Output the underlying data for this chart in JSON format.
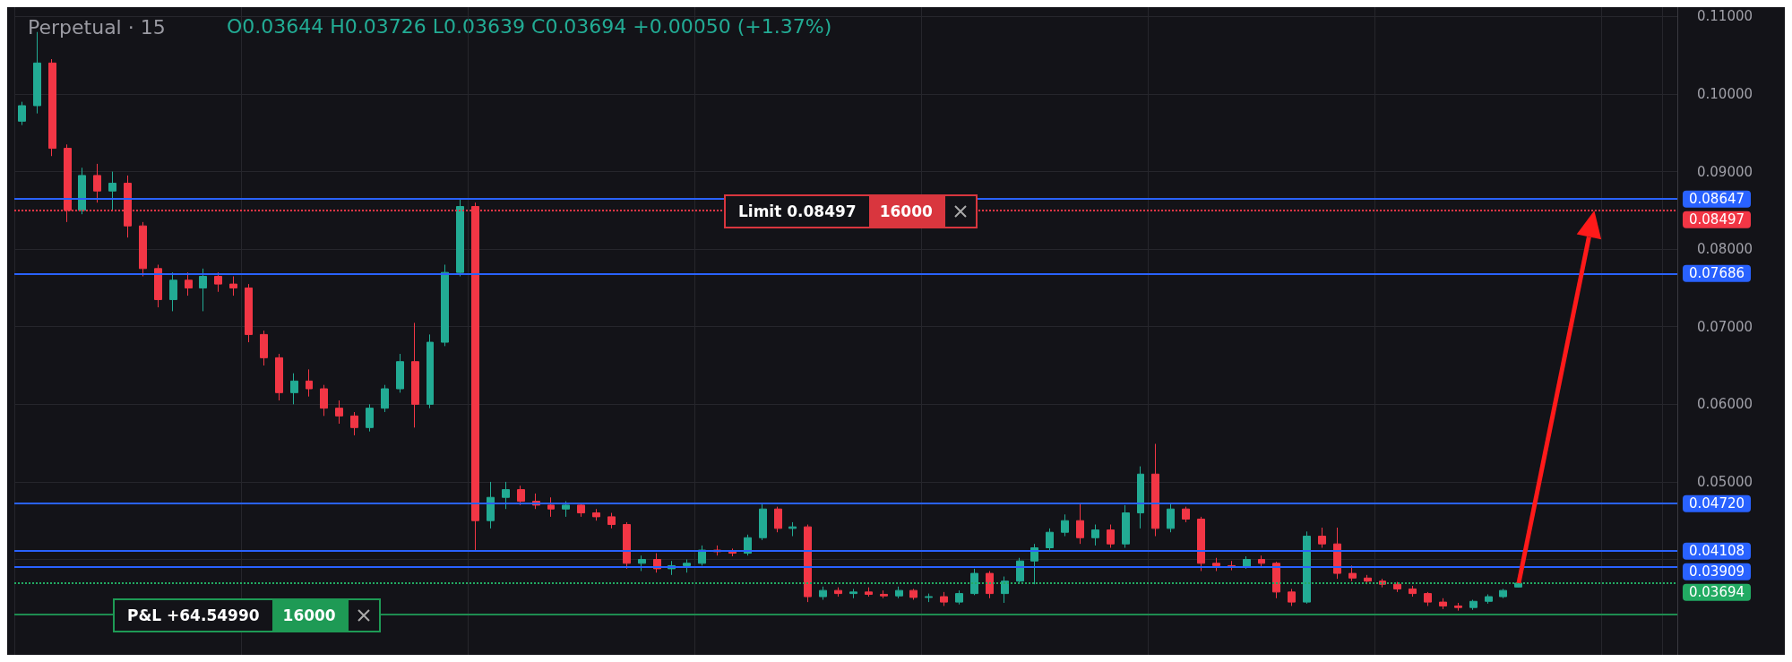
{
  "chart_data": {
    "type": "candlestick",
    "title": "Perpetual · 15",
    "annotations": [
      "O0.03644 H0.03726 L0.03639 C0.03694 +0.00050 (+1.37%)",
      "Limit 0.08497",
      "16000",
      "P&L +64.54990",
      "16000"
    ],
    "categories": [
      null,
      null,
      null,
      null,
      null,
      null,
      null,
      null,
      null,
      null,
      null,
      null,
      null,
      null,
      null,
      null,
      null,
      null,
      null,
      null,
      null,
      null,
      null,
      null,
      null,
      null,
      null,
      null,
      null,
      null,
      null,
      null,
      null,
      null,
      null,
      null,
      null,
      null,
      null,
      null,
      null,
      null,
      null,
      null,
      null,
      null,
      null,
      null,
      null,
      null,
      null,
      null,
      null,
      null,
      null,
      null,
      null,
      null,
      null,
      null,
      null,
      null,
      null,
      null,
      null,
      null,
      null,
      null,
      null,
      null,
      null,
      null,
      null,
      null,
      null,
      null,
      null,
      null,
      null,
      null,
      null,
      null,
      null,
      null,
      null,
      null,
      null,
      null,
      null,
      null,
      null,
      null,
      null,
      null,
      null,
      null,
      null,
      null,
      null,
      null,
      null,
      null,
      null,
      null,
      null,
      null,
      null,
      null,
      null,
      null
    ],
    "ohlc": [
      [
        0.0965,
        0.099,
        0.096,
        0.0985
      ],
      [
        0.0985,
        0.108,
        0.0975,
        0.104
      ],
      [
        0.104,
        0.1045,
        0.092,
        0.093
      ],
      [
        0.093,
        0.0935,
        0.0835,
        0.085
      ],
      [
        0.085,
        0.0905,
        0.0845,
        0.0895
      ],
      [
        0.0895,
        0.091,
        0.086,
        0.0875
      ],
      [
        0.0875,
        0.09,
        0.085,
        0.0885
      ],
      [
        0.0885,
        0.0895,
        0.0815,
        0.083
      ],
      [
        0.083,
        0.0835,
        0.0765,
        0.0775
      ],
      [
        0.0775,
        0.078,
        0.0725,
        0.0735
      ],
      [
        0.0735,
        0.077,
        0.072,
        0.076
      ],
      [
        0.076,
        0.077,
        0.074,
        0.075
      ],
      [
        0.075,
        0.0775,
        0.072,
        0.0765
      ],
      [
        0.0765,
        0.077,
        0.0745,
        0.0755
      ],
      [
        0.0755,
        0.0765,
        0.074,
        0.075
      ],
      [
        0.075,
        0.0755,
        0.068,
        0.069
      ],
      [
        0.069,
        0.0695,
        0.065,
        0.066
      ],
      [
        0.066,
        0.0665,
        0.0605,
        0.0615
      ],
      [
        0.0615,
        0.064,
        0.06,
        0.063
      ],
      [
        0.063,
        0.0645,
        0.061,
        0.062
      ],
      [
        0.062,
        0.0625,
        0.0585,
        0.0595
      ],
      [
        0.0595,
        0.0605,
        0.0575,
        0.0585
      ],
      [
        0.0585,
        0.059,
        0.056,
        0.057
      ],
      [
        0.057,
        0.06,
        0.0565,
        0.0595
      ],
      [
        0.0595,
        0.0625,
        0.059,
        0.062
      ],
      [
        0.062,
        0.0665,
        0.0615,
        0.0655
      ],
      [
        0.0655,
        0.0705,
        0.057,
        0.06
      ],
      [
        0.06,
        0.069,
        0.0595,
        0.068
      ],
      [
        0.068,
        0.078,
        0.0675,
        0.077
      ],
      [
        0.077,
        0.0865,
        0.0765,
        0.0855
      ],
      [
        0.0855,
        0.086,
        0.041,
        0.045
      ],
      [
        0.045,
        0.05,
        0.044,
        0.048
      ],
      [
        0.048,
        0.05,
        0.0465,
        0.049
      ],
      [
        0.049,
        0.0495,
        0.047,
        0.0475
      ],
      [
        0.0475,
        0.0485,
        0.0465,
        0.047
      ],
      [
        0.047,
        0.048,
        0.0455,
        0.0465
      ],
      [
        0.0465,
        0.0475,
        0.0455,
        0.047
      ],
      [
        0.047,
        0.0472,
        0.0455,
        0.046
      ],
      [
        0.046,
        0.0465,
        0.045,
        0.0455
      ],
      [
        0.0455,
        0.046,
        0.044,
        0.0445
      ],
      [
        0.0445,
        0.0448,
        0.0388,
        0.0395
      ],
      [
        0.0395,
        0.0405,
        0.0385,
        0.04
      ],
      [
        0.04,
        0.0408,
        0.0383,
        0.0388
      ],
      [
        0.0388,
        0.0398,
        0.038,
        0.0392
      ],
      [
        0.0392,
        0.04,
        0.0383,
        0.0395
      ],
      [
        0.0395,
        0.0418,
        0.0392,
        0.0412
      ],
      [
        0.0412,
        0.0418,
        0.0405,
        0.041
      ],
      [
        0.041,
        0.0414,
        0.0404,
        0.0408
      ],
      [
        0.0408,
        0.0432,
        0.0405,
        0.0428
      ],
      [
        0.0428,
        0.0472,
        0.0425,
        0.0465
      ],
      [
        0.0465,
        0.0468,
        0.0435,
        0.044
      ],
      [
        0.044,
        0.0448,
        0.043,
        0.0442
      ],
      [
        0.0442,
        0.0445,
        0.0345,
        0.0352
      ],
      [
        0.0352,
        0.0365,
        0.0348,
        0.036
      ],
      [
        0.036,
        0.0364,
        0.0352,
        0.0356
      ],
      [
        0.0356,
        0.0362,
        0.035,
        0.0358
      ],
      [
        0.0358,
        0.0364,
        0.0352,
        0.0355
      ],
      [
        0.0355,
        0.036,
        0.035,
        0.0353
      ],
      [
        0.0353,
        0.0365,
        0.035,
        0.036
      ],
      [
        0.036,
        0.0362,
        0.0348,
        0.0351
      ],
      [
        0.0351,
        0.0356,
        0.0345,
        0.0352
      ],
      [
        0.0352,
        0.0358,
        0.034,
        0.0345
      ],
      [
        0.0345,
        0.036,
        0.0342,
        0.0356
      ],
      [
        0.0356,
        0.0388,
        0.0354,
        0.0382
      ],
      [
        0.0382,
        0.0385,
        0.035,
        0.0356
      ],
      [
        0.0356,
        0.0378,
        0.0344,
        0.0372
      ],
      [
        0.0372,
        0.0402,
        0.037,
        0.0398
      ],
      [
        0.0398,
        0.042,
        0.0368,
        0.0415
      ],
      [
        0.0415,
        0.044,
        0.0412,
        0.0435
      ],
      [
        0.0435,
        0.0458,
        0.043,
        0.045
      ],
      [
        0.045,
        0.0472,
        0.042,
        0.0428
      ],
      [
        0.0428,
        0.0445,
        0.0418,
        0.0438
      ],
      [
        0.0438,
        0.0445,
        0.0415,
        0.042
      ],
      [
        0.042,
        0.047,
        0.0415,
        0.046
      ],
      [
        0.046,
        0.052,
        0.044,
        0.051
      ],
      [
        0.051,
        0.0549,
        0.043,
        0.044
      ],
      [
        0.044,
        0.0472,
        0.0435,
        0.0465
      ],
      [
        0.0465,
        0.0468,
        0.0448,
        0.0452
      ],
      [
        0.0452,
        0.0455,
        0.0385,
        0.0395
      ],
      [
        0.0395,
        0.0402,
        0.0385,
        0.0392
      ],
      [
        0.0392,
        0.0398,
        0.0386,
        0.039
      ],
      [
        0.039,
        0.0404,
        0.0388,
        0.04
      ],
      [
        0.04,
        0.0405,
        0.039,
        0.0395
      ],
      [
        0.0395,
        0.0397,
        0.035,
        0.0358
      ],
      [
        0.0358,
        0.0362,
        0.034,
        0.0345
      ],
      [
        0.0345,
        0.0436,
        0.0343,
        0.043
      ],
      [
        0.043,
        0.0441,
        0.0415,
        0.042
      ],
      [
        0.042,
        0.0441,
        0.0375,
        0.0382
      ],
      [
        0.0382,
        0.0392,
        0.0372,
        0.0376
      ],
      [
        0.0376,
        0.038,
        0.0368,
        0.0372
      ],
      [
        0.0372,
        0.0375,
        0.0364,
        0.0368
      ],
      [
        0.0368,
        0.0371,
        0.0358,
        0.0362
      ],
      [
        0.0362,
        0.0366,
        0.0352,
        0.0356
      ],
      [
        0.0356,
        0.0358,
        0.034,
        0.0345
      ],
      [
        0.0345,
        0.035,
        0.0336,
        0.034
      ],
      [
        0.034,
        0.0344,
        0.0334,
        0.0338
      ],
      [
        0.0338,
        0.0348,
        0.0335,
        0.0346
      ],
      [
        0.0346,
        0.0355,
        0.0343,
        0.0352
      ],
      [
        0.0352,
        0.0362,
        0.035,
        0.036
      ],
      [
        0.03644,
        0.03726,
        0.03639,
        0.03694
      ],
      null,
      null,
      null,
      null,
      null,
      null,
      null,
      null,
      null,
      null
    ],
    "ylim": [
      0.0277,
      0.1112
    ],
    "yticks": [
      {
        "value": 0.04,
        "label": null
      },
      {
        "value": 0.05,
        "label": "0.05000"
      },
      {
        "value": 0.06,
        "label": "0.06000"
      },
      {
        "value": 0.07,
        "label": "0.07000"
      },
      {
        "value": 0.08,
        "label": "0.08000"
      },
      {
        "value": 0.09,
        "label": "0.09000"
      },
      {
        "value": 0.1,
        "label": "0.10000"
      },
      {
        "value": 0.11,
        "label": "0.11000"
      }
    ],
    "grid": true,
    "tick_labels": "y",
    "ref_lines": [
      {
        "axis": "y",
        "value": 0.08647,
        "label": "0.08647",
        "color": "#2962ff"
      },
      {
        "axis": "y",
        "value": 0.08497,
        "label": "0.08497",
        "color": "#f23645",
        "line_style": "dotted"
      },
      {
        "axis": "y",
        "value": 0.07686,
        "label": "0.07686",
        "color": "#2962ff"
      },
      {
        "axis": "y",
        "value": 0.0472,
        "label": "0.04720",
        "color": "#2962ff"
      },
      {
        "axis": "y",
        "value": 0.04108,
        "label": "0.04108",
        "color": "#2962ff"
      },
      {
        "axis": "y",
        "value": 0.03909,
        "label": "0.03909",
        "color": "#2962ff"
      },
      {
        "axis": "y",
        "value": 0.03694,
        "label": "0.03694",
        "color": "#22ab63",
        "line_style": "dotted"
      },
      {
        "axis": "y",
        "value": 0.0329,
        "label": null,
        "color": "#1e8c50"
      }
    ]
  }
}
